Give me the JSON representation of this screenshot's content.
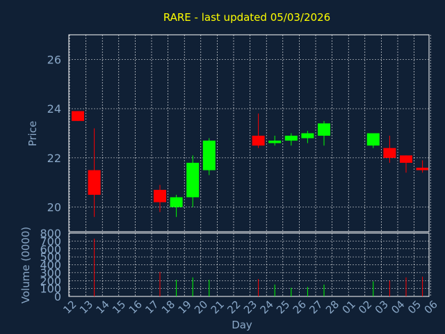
{
  "chart_data": [
    {
      "type": "candlestick",
      "title": "RARE - last updated 05/03/2026",
      "ylabel": "Price",
      "ylim": [
        19,
        27
      ],
      "yticks": [
        "20",
        "22",
        "24",
        "26"
      ],
      "grid": true,
      "candles": [
        {
          "x": "12",
          "open": 23.9,
          "close": 23.5,
          "high": 23.9,
          "low": 23.5
        },
        {
          "x": "13",
          "open": 21.5,
          "close": 20.5,
          "high": 23.2,
          "low": 19.6
        },
        {
          "x": "17",
          "open": 20.7,
          "close": 20.2,
          "high": 20.9,
          "low": 19.8
        },
        {
          "x": "18",
          "open": 20.0,
          "close": 20.4,
          "high": 20.5,
          "low": 19.6
        },
        {
          "x": "19",
          "open": 20.4,
          "close": 21.8,
          "high": 22.1,
          "low": 20.0
        },
        {
          "x": "20",
          "open": 21.5,
          "close": 22.7,
          "high": 22.8,
          "low": 21.3
        },
        {
          "x": "23",
          "open": 22.9,
          "close": 22.5,
          "high": 23.8,
          "low": 22.4
        },
        {
          "x": "24",
          "open": 22.6,
          "close": 22.7,
          "high": 22.9,
          "low": 22.5
        },
        {
          "x": "25",
          "open": 22.7,
          "close": 22.9,
          "high": 23.0,
          "low": 22.5
        },
        {
          "x": "26",
          "open": 22.8,
          "close": 23.0,
          "high": 23.1,
          "low": 22.6
        },
        {
          "x": "27",
          "open": 22.9,
          "close": 23.4,
          "high": 23.5,
          "low": 22.5
        },
        {
          "x": "02",
          "open": 22.5,
          "close": 23.0,
          "high": 23.0,
          "low": 22.4
        },
        {
          "x": "03",
          "open": 22.4,
          "close": 22.0,
          "high": 22.9,
          "low": 21.8
        },
        {
          "x": "04",
          "open": 22.1,
          "close": 21.8,
          "high": 22.1,
          "low": 21.4
        },
        {
          "x": "05",
          "open": 21.6,
          "close": 21.5,
          "high": 21.9,
          "low": 21.4
        }
      ]
    },
    {
      "type": "bar",
      "ylabel": "Volume (0000)",
      "xlabel": "Day",
      "ylim": [
        0,
        800
      ],
      "yticks": [
        "0",
        "100",
        "200",
        "300",
        "400",
        "500",
        "600",
        "700",
        "800"
      ],
      "categories": [
        "12",
        "13",
        "14",
        "15",
        "16",
        "17",
        "18",
        "19",
        "20",
        "21",
        "22",
        "23",
        "24",
        "25",
        "26",
        "27",
        "28",
        "01",
        "02",
        "03",
        "04",
        "05",
        "06"
      ],
      "values": [
        0,
        730,
        0,
        0,
        0,
        310,
        210,
        240,
        210,
        0,
        0,
        220,
        150,
        110,
        120,
        150,
        0,
        0,
        190,
        200,
        240,
        250,
        0
      ],
      "colors": [
        "red",
        "red",
        "none",
        "none",
        "none",
        "red",
        "green",
        "green",
        "green",
        "none",
        "none",
        "red",
        "green",
        "green",
        "green",
        "green",
        "none",
        "none",
        "green",
        "red",
        "red",
        "red",
        "none"
      ]
    }
  ],
  "style": {
    "background": "#102035",
    "grid": "#ffffff",
    "axis_text": "#8aa8c8",
    "title": "#ffff00",
    "up": "#00ff00",
    "down": "#ff0000"
  }
}
